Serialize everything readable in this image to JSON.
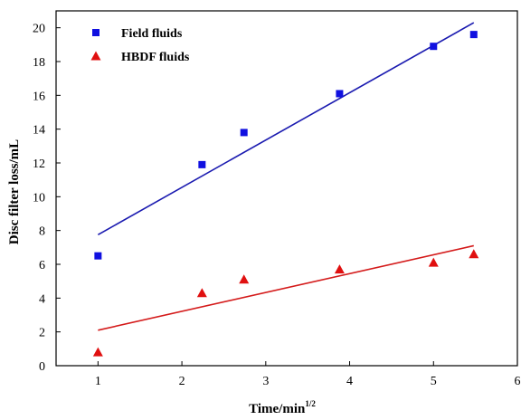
{
  "chart_data": {
    "type": "scatter",
    "title": "",
    "xlabel": "Time/min",
    "xlabel_superscript": "1/2",
    "ylabel": "Disc filter loss/mL",
    "xlim": [
      0.5,
      6
    ],
    "ylim": [
      0,
      21
    ],
    "x_ticks": [
      "1",
      "2",
      "3",
      "4",
      "5",
      "6"
    ],
    "y_ticks": [
      "0",
      "2",
      "4",
      "6",
      "8",
      "10",
      "12",
      "14",
      "16",
      "18",
      "20"
    ],
    "legend_position": "top-left",
    "grid": false,
    "series": [
      {
        "name": "Field fluids",
        "marker": "square",
        "color": "#1010e0",
        "x": [
          1.0,
          2.24,
          2.74,
          3.88,
          5.0,
          5.48
        ],
        "y": [
          6.5,
          11.9,
          13.8,
          16.1,
          18.9,
          19.6
        ],
        "fit_line": {
          "x": [
            1.0,
            5.48
          ],
          "y": [
            7.75,
            20.3
          ],
          "color": "#1a1ab0"
        }
      },
      {
        "name": "HBDF fluids",
        "marker": "triangle",
        "color": "#e01010",
        "x": [
          1.0,
          2.24,
          2.74,
          3.88,
          5.0,
          5.48
        ],
        "y": [
          0.8,
          4.3,
          5.1,
          5.7,
          6.1,
          6.6
        ],
        "fit_line": {
          "x": [
            1.0,
            5.48
          ],
          "y": [
            2.1,
            7.1
          ],
          "color": "#d41a1a"
        }
      }
    ]
  }
}
